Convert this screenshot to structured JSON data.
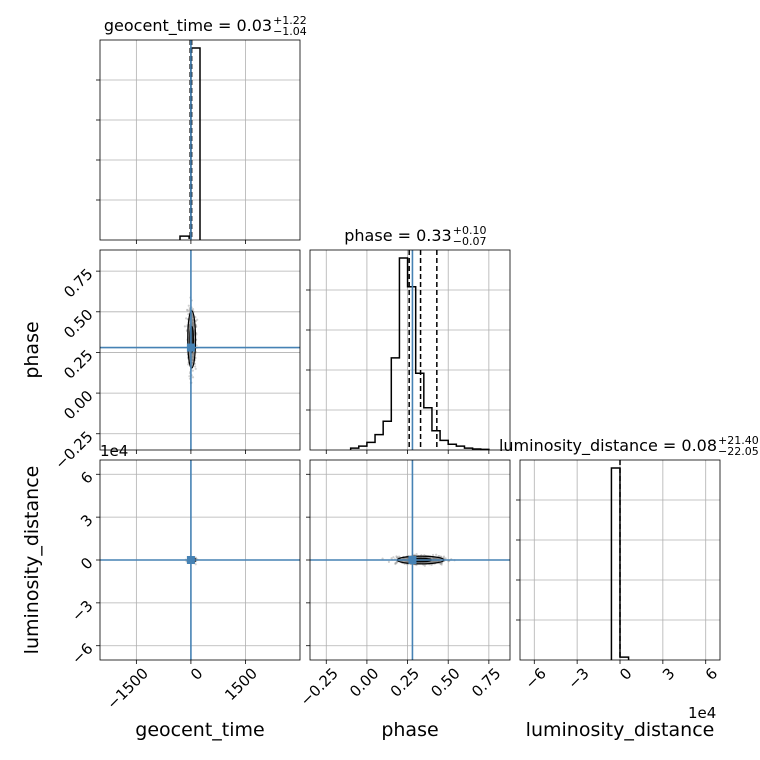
{
  "chart_data": {
    "type": "corner",
    "parameters": [
      {
        "name": "geocent_time",
        "xlabel": "geocent_time",
        "title": {
          "text": "geocent_time = 0.03",
          "sup": "+1.22",
          "sub": "−1.04"
        },
        "range": [
          -2500,
          3000
        ],
        "ticks": [
          -1500,
          0,
          1500
        ],
        "tick_labels": [
          "−1500",
          "0",
          "1500"
        ],
        "truth": 0,
        "quantiles": [
          -20,
          20
        ],
        "hist": {
          "edges": [
            -300,
            -50,
            0,
            250
          ],
          "values": [
            0.02,
            0.01,
            1.0
          ]
        }
      },
      {
        "name": "phase",
        "ylabel": "phase",
        "xlabel": "phase",
        "title": {
          "text": "phase = 0.33",
          "sup": "+0.10",
          "sub": "−0.07"
        },
        "range": [
          -0.35,
          0.88
        ],
        "ticks": [
          -0.25,
          0.0,
          0.25,
          0.5,
          0.75
        ],
        "tick_labels": [
          "−0.25",
          "0.00",
          "0.25",
          "0.50",
          "0.75"
        ],
        "truth": 0.28,
        "quantiles": [
          0.26,
          0.33,
          0.43
        ],
        "hist": {
          "edges": [
            -0.1,
            -0.05,
            0.0,
            0.05,
            0.1,
            0.15,
            0.2,
            0.25,
            0.3,
            0.35,
            0.4,
            0.45,
            0.5,
            0.55,
            0.6,
            0.65,
            0.7,
            0.75
          ],
          "values": [
            0.01,
            0.02,
            0.04,
            0.08,
            0.15,
            0.48,
            1.0,
            0.85,
            0.4,
            0.22,
            0.1,
            0.05,
            0.03,
            0.02,
            0.01,
            0.005,
            0.003
          ]
        }
      },
      {
        "name": "luminosity_distance",
        "ylabel": "luminosity_distance",
        "xlabel": "luminosity_distance",
        "title": {
          "text": "luminosity_distance = 0.08",
          "sup": "+21.40",
          "sub": "−22.05"
        },
        "range": [
          -70000,
          70000
        ],
        "ticks": [
          -60000,
          -30000,
          0,
          30000,
          60000
        ],
        "tick_labels": [
          "−6",
          "−3",
          "0",
          "3",
          "6"
        ],
        "offset": "1e4",
        "truth": 0,
        "quantiles": [
          0
        ],
        "hist": {
          "edges": [
            -6000,
            0,
            6000
          ],
          "values": [
            1.0,
            0.015
          ]
        }
      }
    ],
    "grid": true
  }
}
